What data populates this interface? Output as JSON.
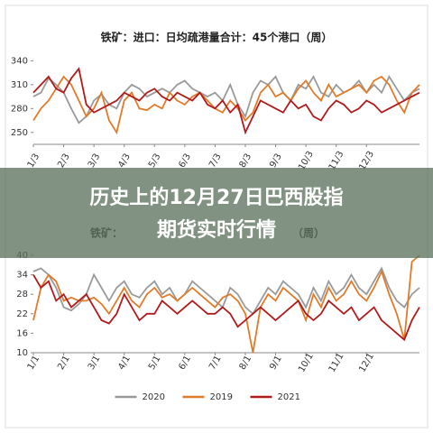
{
  "chart_data": [
    {
      "type": "line",
      "title": "铁矿：进口：日均疏港量合计：45个港口（周）",
      "categories": [
        "1/3",
        null,
        null,
        null,
        "2/3",
        null,
        null,
        null,
        "3/3",
        null,
        null,
        null,
        "4/3",
        null,
        null,
        null,
        "5/3",
        null,
        null,
        null,
        "6/3",
        null,
        null,
        null,
        "7/3",
        null,
        null,
        null,
        "8/3",
        null,
        null,
        null,
        "9/3",
        null,
        null,
        null,
        "10/3",
        null,
        null,
        null,
        "11/3",
        null,
        null,
        null,
        "12/3",
        null,
        null,
        null,
        null,
        null,
        null,
        null
      ],
      "ylim": [
        235,
        345
      ],
      "yticks": [
        250,
        280,
        310,
        340
      ],
      "series": [
        {
          "name": "2020",
          "color": "#9a9a9a",
          "values": [
            295,
            300,
            318,
            310,
            300,
            280,
            262,
            270,
            290,
            298,
            285,
            280,
            300,
            310,
            305,
            295,
            300,
            305,
            300,
            310,
            315,
            305,
            300,
            295,
            300,
            290,
            310,
            285,
            270,
            300,
            315,
            310,
            320,
            300,
            290,
            310,
            305,
            320,
            300,
            295,
            310,
            300,
            305,
            315,
            300,
            310,
            300,
            320,
            305,
            290,
            300,
            305
          ]
        },
        {
          "name": "2019",
          "color": "#e07b2a",
          "values": [
            265,
            280,
            290,
            305,
            320,
            310,
            290,
            270,
            280,
            300,
            265,
            250,
            290,
            300,
            280,
            278,
            285,
            280,
            300,
            290,
            285,
            295,
            300,
            290,
            280,
            275,
            290,
            280,
            265,
            275,
            300,
            310,
            295,
            300,
            290,
            305,
            315,
            300,
            290,
            310,
            295,
            300,
            305,
            310,
            300,
            315,
            320,
            310,
            290,
            275,
            300,
            310
          ]
        },
        {
          "name": "2021",
          "color": "#b01c1c",
          "values": [
            300,
            310,
            320,
            305,
            300,
            318,
            330,
            285,
            275,
            280,
            285,
            290,
            300,
            295,
            290,
            300,
            305,
            295,
            290,
            300,
            295,
            290,
            300,
            285,
            280,
            290,
            275,
            285,
            250,
            270,
            290,
            285,
            280,
            275,
            290,
            280,
            285,
            270,
            265,
            280,
            290,
            285,
            275,
            280,
            290,
            285,
            275,
            280,
            285,
            290,
            295,
            300
          ]
        }
      ]
    },
    {
      "type": "line",
      "title": "铁矿：",
      "title_suffix": "（周）",
      "categories": [
        "1/1",
        null,
        null,
        null,
        "2/1",
        null,
        null,
        null,
        "3/1",
        null,
        null,
        null,
        "4/1",
        null,
        null,
        null,
        "5/1",
        null,
        null,
        null,
        "6/1",
        null,
        null,
        null,
        "7/1",
        null,
        null,
        null,
        "8/1",
        null,
        null,
        null,
        "9/1",
        null,
        null,
        null,
        "10/1",
        null,
        null,
        null,
        "11/1",
        null,
        null,
        null,
        "12/1",
        null,
        null,
        null,
        null,
        null,
        null,
        null
      ],
      "ylim": [
        10,
        40
      ],
      "yticks": [
        10,
        16,
        22,
        28,
        34,
        40
      ],
      "legend": "bottom",
      "series": [
        {
          "name": "2020",
          "color": "#9a9a9a",
          "values": [
            35,
            36,
            34,
            30,
            24,
            23,
            25,
            28,
            34,
            30,
            26,
            30,
            32,
            28,
            27,
            30,
            32,
            28,
            30,
            26,
            28,
            32,
            30,
            28,
            26,
            24,
            30,
            28,
            24,
            22,
            26,
            30,
            28,
            32,
            30,
            28,
            24,
            30,
            26,
            32,
            28,
            30,
            34,
            30,
            28,
            32,
            36,
            30,
            26,
            24,
            28,
            30
          ]
        },
        {
          "name": "2019",
          "color": "#e07b2a",
          "values": [
            20,
            30,
            34,
            32,
            26,
            27,
            26,
            26,
            27,
            25,
            22,
            26,
            30,
            26,
            24,
            28,
            30,
            27,
            28,
            26,
            28,
            30,
            28,
            26,
            24,
            27,
            28,
            26,
            22,
            10,
            24,
            28,
            26,
            30,
            28,
            26,
            20,
            28,
            24,
            30,
            26,
            28,
            32,
            28,
            26,
            30,
            35,
            28,
            22,
            14,
            38,
            40
          ]
        },
        {
          "name": "2021",
          "color": "#b01c1c",
          "values": [
            34,
            30,
            32,
            26,
            28,
            24,
            26,
            28,
            24,
            20,
            19,
            22,
            28,
            24,
            20,
            22,
            22,
            26,
            24,
            22,
            24,
            26,
            24,
            22,
            22,
            24,
            22,
            18,
            20,
            22,
            24,
            22,
            20,
            22,
            24,
            26,
            22,
            20,
            22,
            26,
            24,
            22,
            24,
            20,
            22,
            24,
            20,
            18,
            16,
            14,
            20,
            24
          ]
        }
      ]
    }
  ],
  "overlay": {
    "lines": [
      "历史上的12月27日巴西股指",
      "期货实时行情"
    ]
  }
}
